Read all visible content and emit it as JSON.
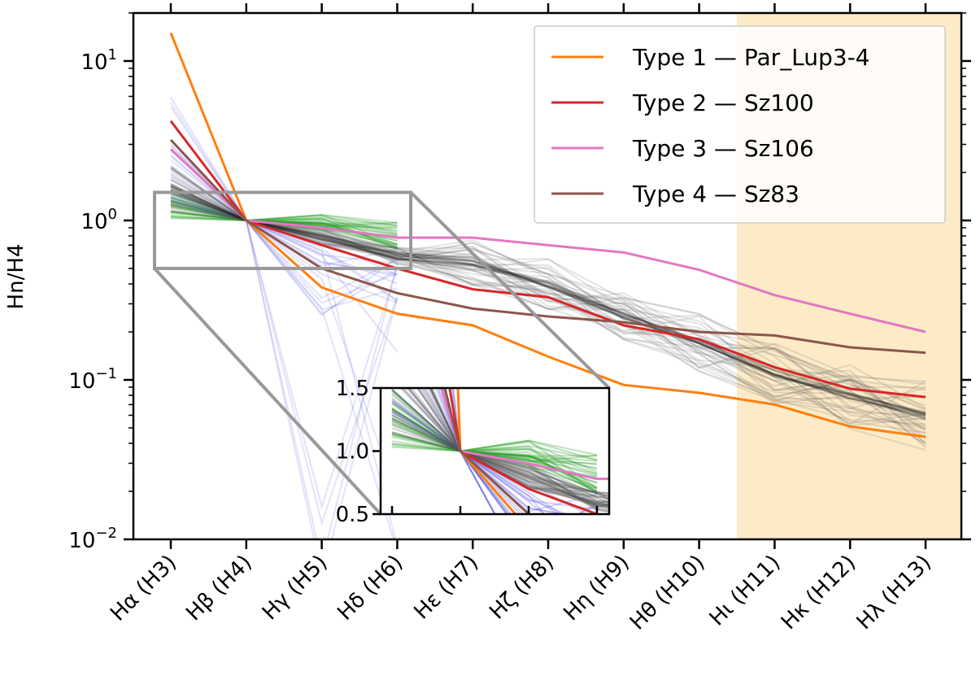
{
  "chart_data": {
    "type": "line",
    "title": "",
    "xlabel": "",
    "ylabel": "Hn/H4",
    "yscale": "log",
    "ylim": [
      0.01,
      20
    ],
    "y_ticks": [
      {
        "value": 0.01,
        "base": "10",
        "exp": "−2"
      },
      {
        "value": 0.1,
        "base": "10",
        "exp": "−1"
      },
      {
        "value": 1,
        "base": "10",
        "exp": "0"
      },
      {
        "value": 10,
        "base": "10",
        "exp": "1"
      }
    ],
    "categories": [
      "Hα (H3)",
      "Hβ (H4)",
      "Hγ (H5)",
      "Hδ (H6)",
      "Hε (H7)",
      "Hζ (H8)",
      "Hη (H9)",
      "Hθ (H10)",
      "Hι (H11)",
      "Hκ (H12)",
      "Hλ (H13)"
    ],
    "shaded_region": {
      "from_index": 7.5,
      "to_index": 10.5,
      "color": "#fdebc8"
    },
    "series": [
      {
        "name": "Type 1 — Par_Lup3-4",
        "color": "#ff7f0e",
        "values": [
          15,
          1.0,
          0.38,
          0.26,
          0.22,
          0.14,
          0.093,
          0.083,
          0.07,
          0.051,
          0.044
        ]
      },
      {
        "name": "Type 2 — Sz100",
        "color": "#d62728",
        "values": [
          4.2,
          1.0,
          0.7,
          0.5,
          0.37,
          0.33,
          0.22,
          0.18,
          0.12,
          0.088,
          0.078
        ]
      },
      {
        "name": "Type 3 — Sz106",
        "color": "#e377c2",
        "values": [
          2.8,
          1.0,
          0.9,
          0.78,
          0.78,
          0.7,
          0.63,
          0.49,
          0.34,
          0.26,
          0.2
        ]
      },
      {
        "name": "Type 4 — Sz83",
        "color": "#8c564b",
        "values": [
          3.2,
          1.0,
          0.5,
          0.35,
          0.28,
          0.25,
          0.23,
          0.2,
          0.19,
          0.16,
          0.148
        ]
      }
    ],
    "background_groups": {
      "green": {
        "color": "#2ca02c",
        "count": 30,
        "range": [
          0,
          3
        ],
        "start_range": [
          1.02,
          1.5
        ],
        "end_range": [
          0.62,
          0.98
        ]
      },
      "blue": {
        "color": "#3333dd",
        "count": 22,
        "range": [
          0,
          3
        ],
        "start_range": [
          1.3,
          6.5
        ]
      },
      "gray": {
        "color": "#555555",
        "count": 35,
        "range": [
          0,
          10
        ],
        "end_range": [
          0.035,
          0.1
        ]
      }
    },
    "inset": {
      "x_index_range": [
        0,
        2
      ],
      "ylim": [
        0.5,
        1.5
      ],
      "y_ticks": [
        "1.5",
        "1.0",
        "0.5"
      ]
    },
    "legend": {
      "position": "top-right",
      "entries": [
        "Type 1 — Par_Lup3-4",
        "Type 2 — Sz100",
        "Type 3 — Sz106",
        "Type 4 — Sz83"
      ]
    }
  }
}
